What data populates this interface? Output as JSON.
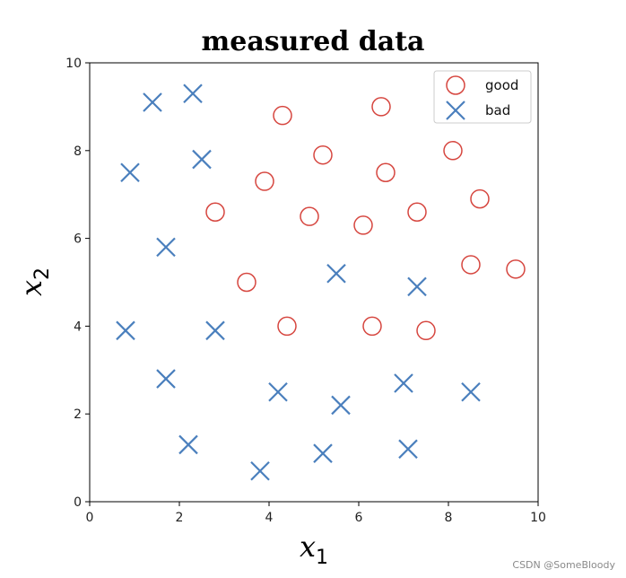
{
  "chart_data": {
    "type": "scatter",
    "title": "measured data",
    "xlabel": {
      "base": "x",
      "sub": "1"
    },
    "ylabel": {
      "base": "x",
      "sub": "2"
    },
    "xlim": [
      0,
      10
    ],
    "ylim": [
      0,
      10
    ],
    "xticks": [
      "0",
      "2",
      "4",
      "6",
      "8",
      "10"
    ],
    "yticks": [
      "0",
      "2",
      "4",
      "6",
      "8",
      "10"
    ],
    "grid": false,
    "legend_position": "top-right",
    "series": [
      {
        "name": "good",
        "marker": "circle",
        "color": "#d6463f",
        "points": [
          [
            4.3,
            8.8
          ],
          [
            6.5,
            9.0
          ],
          [
            5.2,
            7.9
          ],
          [
            8.1,
            8.0
          ],
          [
            3.9,
            7.3
          ],
          [
            6.6,
            7.5
          ],
          [
            2.8,
            6.6
          ],
          [
            4.9,
            6.5
          ],
          [
            6.1,
            6.3
          ],
          [
            7.3,
            6.6
          ],
          [
            8.7,
            6.9
          ],
          [
            3.5,
            5.0
          ],
          [
            8.5,
            5.4
          ],
          [
            9.5,
            5.3
          ],
          [
            4.4,
            4.0
          ],
          [
            6.3,
            4.0
          ],
          [
            7.5,
            3.9
          ]
        ]
      },
      {
        "name": "bad",
        "marker": "x",
        "color": "#4a7fbd",
        "points": [
          [
            1.4,
            9.1
          ],
          [
            2.3,
            9.3
          ],
          [
            0.9,
            7.5
          ],
          [
            2.5,
            7.8
          ],
          [
            1.7,
            5.8
          ],
          [
            5.5,
            5.2
          ],
          [
            7.3,
            4.9
          ],
          [
            0.8,
            3.9
          ],
          [
            2.8,
            3.9
          ],
          [
            1.7,
            2.8
          ],
          [
            4.2,
            2.5
          ],
          [
            5.6,
            2.2
          ],
          [
            7.0,
            2.7
          ],
          [
            8.5,
            2.5
          ],
          [
            2.2,
            1.3
          ],
          [
            3.8,
            0.7
          ],
          [
            5.2,
            1.1
          ],
          [
            7.1,
            1.2
          ]
        ]
      }
    ]
  },
  "watermark": "CSDN @SomeBloody"
}
